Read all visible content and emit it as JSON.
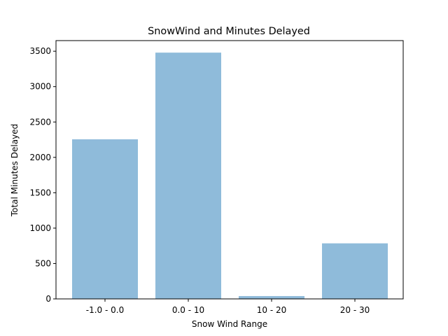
{
  "chart_data": {
    "type": "bar",
    "title": "SnowWind and Minutes Delayed",
    "xlabel": "Snow Wind Range",
    "ylabel": "Total Minutes Delayed",
    "categories": [
      "-1.0 - 0.0",
      "0.0 - 10",
      "10 - 20",
      "20 - 30"
    ],
    "values": [
      2255,
      3480,
      40,
      785
    ],
    "ylim": [
      0,
      3650
    ],
    "yticks": [
      0,
      500,
      1000,
      1500,
      2000,
      2500,
      3000,
      3500
    ],
    "grid": false,
    "bar_color": "#8fbbda"
  }
}
